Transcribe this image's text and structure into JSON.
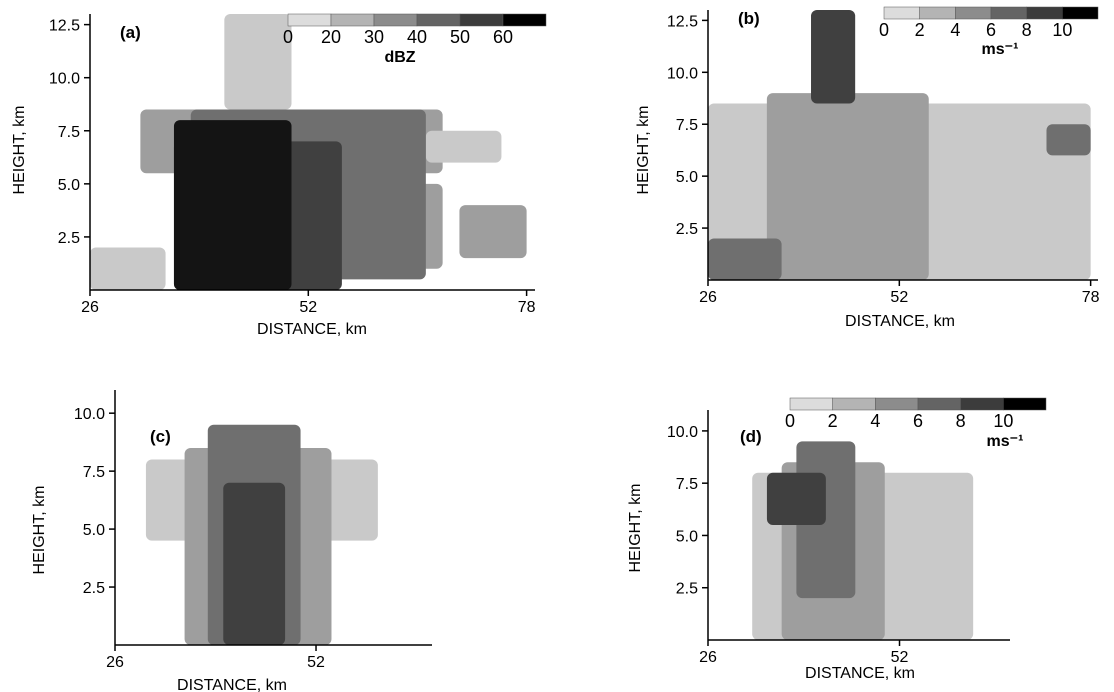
{
  "chart_data": [
    {
      "type": "heatmap",
      "panel": "(a)",
      "xlabel": "DISTANCE, km",
      "ylabel": "HEIGHT, km",
      "xlim": [
        26,
        79
      ],
      "ylim": [
        0,
        13
      ],
      "xticks": [
        26,
        52,
        78
      ],
      "yticks": [
        2.5,
        5.0,
        7.5,
        10.0,
        12.5
      ],
      "colorbar": {
        "ticks": [
          "0",
          "20",
          "30",
          "40",
          "50",
          "60"
        ],
        "unit": "dBZ",
        "colors": [
          "#dcdcdc",
          "#b4b4b4",
          "#8c8c8c",
          "#646464",
          "#3c3c3c",
          "#000000"
        ]
      },
      "regions": [
        {
          "level": 1,
          "x": [
            26,
            35
          ],
          "y": [
            0,
            2.0
          ]
        },
        {
          "level": 1,
          "x": [
            42,
            50
          ],
          "y": [
            8.5,
            13.0
          ]
        },
        {
          "level": 2,
          "x": [
            32,
            68
          ],
          "y": [
            5.5,
            8.5
          ]
        },
        {
          "level": 1,
          "x": [
            66,
            75
          ],
          "y": [
            6.0,
            7.5
          ]
        },
        {
          "level": 2,
          "x": [
            60,
            68
          ],
          "y": [
            1.0,
            5.0
          ]
        },
        {
          "level": 2,
          "x": [
            70,
            78
          ],
          "y": [
            1.5,
            4.0
          ]
        },
        {
          "level": 3,
          "x": [
            38,
            66
          ],
          "y": [
            0.5,
            8.5
          ]
        },
        {
          "level": 4,
          "x": [
            36,
            56
          ],
          "y": [
            0,
            7.0
          ]
        },
        {
          "level": 5,
          "x": [
            36,
            50
          ],
          "y": [
            0,
            8.0
          ]
        }
      ]
    },
    {
      "type": "heatmap",
      "panel": "(b)",
      "xlabel": "DISTANCE, km",
      "ylabel": "HEIGHT, km",
      "xlim": [
        26,
        79
      ],
      "ylim": [
        0,
        13
      ],
      "xticks": [
        26,
        52,
        78
      ],
      "yticks": [
        2.5,
        5.0,
        7.5,
        10.0,
        12.5
      ],
      "colorbar": {
        "ticks": [
          "0",
          "2",
          "4",
          "6",
          "8",
          "10"
        ],
        "unit": "ms⁻¹",
        "colors": [
          "#dcdcdc",
          "#b4b4b4",
          "#8c8c8c",
          "#646464",
          "#3c3c3c",
          "#000000"
        ]
      },
      "regions": [
        {
          "level": 1,
          "x": [
            26,
            78
          ],
          "y": [
            0,
            8.5
          ]
        },
        {
          "level": 2,
          "x": [
            34,
            56
          ],
          "y": [
            0,
            9.0
          ]
        },
        {
          "level": 4,
          "x": [
            40,
            46
          ],
          "y": [
            8.5,
            13.0
          ]
        },
        {
          "level": 3,
          "x": [
            26,
            36
          ],
          "y": [
            0,
            2.0
          ]
        },
        {
          "level": 3,
          "x": [
            72,
            78
          ],
          "y": [
            6.0,
            7.5
          ]
        }
      ]
    },
    {
      "type": "heatmap",
      "panel": "(c)",
      "xlabel": "DISTANCE, km",
      "ylabel": "HEIGHT, km",
      "xlim": [
        26,
        67
      ],
      "ylim": [
        0,
        11
      ],
      "xticks": [
        26,
        52
      ],
      "yticks": [
        2.5,
        5.0,
        7.5,
        10.0
      ],
      "regions": [
        {
          "level": 1,
          "x": [
            30,
            60
          ],
          "y": [
            4.5,
            8.0
          ]
        },
        {
          "level": 2,
          "x": [
            35,
            54
          ],
          "y": [
            0,
            8.5
          ]
        },
        {
          "level": 3,
          "x": [
            38,
            50
          ],
          "y": [
            0,
            9.5
          ]
        },
        {
          "level": 4,
          "x": [
            40,
            48
          ],
          "y": [
            0,
            7.0
          ]
        }
      ]
    },
    {
      "type": "heatmap",
      "panel": "(d)",
      "xlabel": "DISTANCE, km",
      "ylabel": "HEIGHT, km",
      "xlim": [
        26,
        67
      ],
      "ylim": [
        0,
        11
      ],
      "xticks": [
        26,
        52
      ],
      "yticks": [
        2.5,
        5.0,
        7.5,
        10.0
      ],
      "colorbar": {
        "ticks": [
          "0",
          "2",
          "4",
          "6",
          "8",
          "10"
        ],
        "unit": "ms⁻¹",
        "colors": [
          "#dcdcdc",
          "#b4b4b4",
          "#8c8c8c",
          "#646464",
          "#3c3c3c",
          "#000000"
        ]
      },
      "regions": [
        {
          "level": 1,
          "x": [
            32,
            62
          ],
          "y": [
            0,
            8.0
          ]
        },
        {
          "level": 2,
          "x": [
            36,
            50
          ],
          "y": [
            0,
            8.5
          ]
        },
        {
          "level": 3,
          "x": [
            38,
            46
          ],
          "y": [
            2.0,
            9.5
          ]
        },
        {
          "level": 4,
          "x": [
            34,
            42
          ],
          "y": [
            5.5,
            8.0
          ]
        }
      ]
    }
  ]
}
